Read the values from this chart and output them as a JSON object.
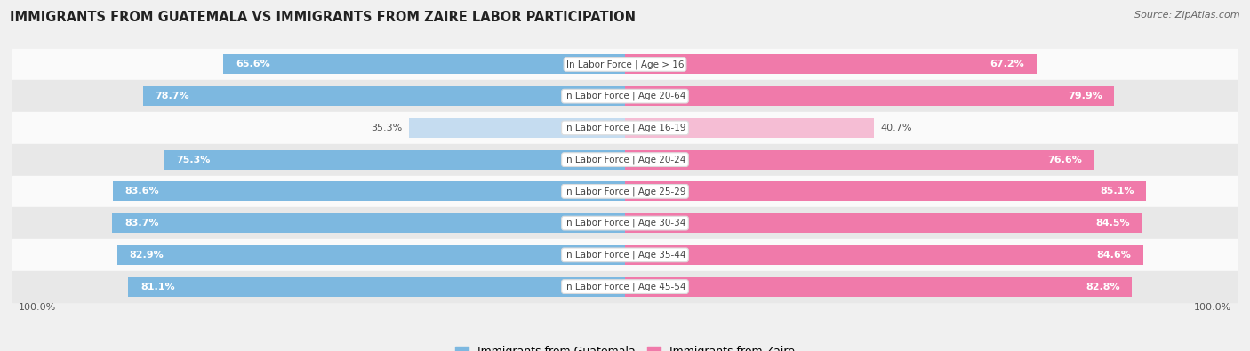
{
  "title": "IMMIGRANTS FROM GUATEMALA VS IMMIGRANTS FROM ZAIRE LABOR PARTICIPATION",
  "source": "Source: ZipAtlas.com",
  "categories": [
    "In Labor Force | Age > 16",
    "In Labor Force | Age 20-64",
    "In Labor Force | Age 16-19",
    "In Labor Force | Age 20-24",
    "In Labor Force | Age 25-29",
    "In Labor Force | Age 30-34",
    "In Labor Force | Age 35-44",
    "In Labor Force | Age 45-54"
  ],
  "guatemala_values": [
    65.6,
    78.7,
    35.3,
    75.3,
    83.6,
    83.7,
    82.9,
    81.1
  ],
  "zaire_values": [
    67.2,
    79.9,
    40.7,
    76.6,
    85.1,
    84.5,
    84.6,
    82.8
  ],
  "guatemala_color": "#7db8e0",
  "zaire_color": "#f07aaa",
  "guatemala_color_light": "#c5dcf0",
  "zaire_color_light": "#f5bdd4",
  "background_color": "#f0f0f0",
  "row_bg_light": "#fafafa",
  "row_bg_dark": "#e8e8e8",
  "legend_guatemala": "Immigrants from Guatemala",
  "legend_zaire": "Immigrants from Zaire",
  "max_value": 100.0,
  "label_threshold": 50.0
}
